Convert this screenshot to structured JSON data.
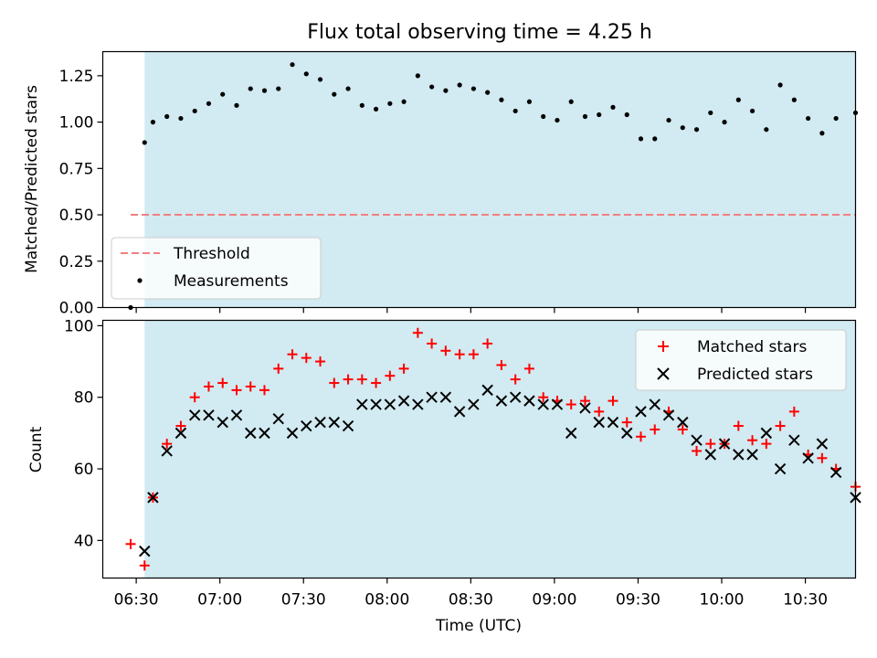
{
  "figure": {
    "title": "Flux total observing time = 4.25 h",
    "xlabel": "Time (UTC)"
  },
  "colors": {
    "shade": "#add8e6",
    "threshold": "#f08080",
    "measurements": "#000000",
    "matched": "#ff0000",
    "predicted": "#000000"
  },
  "chart_data": [
    {
      "type": "scatter",
      "ylabel": "Matched/Predicted stars",
      "ylim": [
        0,
        1.38
      ],
      "xlim": [
        "06:18",
        "10:48"
      ],
      "yticks": [
        0.0,
        0.25,
        0.5,
        0.75,
        1.0,
        1.25
      ],
      "ytick_labels": [
        "0.00",
        "0.25",
        "0.50",
        "0.75",
        "1.00",
        "1.25"
      ],
      "grid": false,
      "legend_position": "lower-left",
      "observing_window": [
        "06:33",
        "10:48"
      ],
      "threshold": {
        "name": "Threshold",
        "value": 0.5,
        "x": [
          "06:28",
          "10:48"
        ]
      },
      "series": [
        {
          "name": "Measurements",
          "x": [
            "06:28",
            "06:33",
            "06:36",
            "06:41",
            "06:46",
            "06:51",
            "06:56",
            "07:01",
            "07:06",
            "07:11",
            "07:16",
            "07:21",
            "07:26",
            "07:31",
            "07:36",
            "07:41",
            "07:46",
            "07:51",
            "07:56",
            "08:01",
            "08:06",
            "08:11",
            "08:16",
            "08:21",
            "08:26",
            "08:31",
            "08:36",
            "08:41",
            "08:46",
            "08:51",
            "08:56",
            "09:01",
            "09:06",
            "09:11",
            "09:16",
            "09:21",
            "09:26",
            "09:31",
            "09:36",
            "09:41",
            "09:46",
            "09:51",
            "09:56",
            "10:01",
            "10:06",
            "10:11",
            "10:16",
            "10:21",
            "10:26",
            "10:31",
            "10:36",
            "10:41",
            "10:48"
          ],
          "y": [
            0.0,
            0.89,
            1.0,
            1.03,
            1.02,
            1.06,
            1.1,
            1.15,
            1.09,
            1.18,
            1.17,
            1.18,
            1.31,
            1.26,
            1.23,
            1.15,
            1.18,
            1.09,
            1.07,
            1.1,
            1.11,
            1.25,
            1.19,
            1.17,
            1.2,
            1.18,
            1.16,
            1.12,
            1.06,
            1.11,
            1.03,
            1.01,
            1.11,
            1.03,
            1.04,
            1.08,
            1.04,
            0.91,
            0.91,
            1.01,
            0.97,
            0.96,
            1.05,
            1.0,
            1.12,
            1.06,
            0.96,
            1.2,
            1.12,
            1.02,
            0.94,
            1.02,
            1.05
          ]
        }
      ],
      "xticks": [
        "06:30",
        "07:00",
        "07:30",
        "08:00",
        "08:30",
        "09:00",
        "09:30",
        "10:00",
        "10:30"
      ]
    },
    {
      "type": "scatter",
      "ylabel": "Count",
      "ylim": [
        29.5,
        101.5
      ],
      "xlim": [
        "06:18",
        "10:48"
      ],
      "yticks": [
        40,
        60,
        80,
        100
      ],
      "ytick_labels": [
        "40",
        "60",
        "80",
        "100"
      ],
      "grid": false,
      "legend_position": "top-right",
      "observing_window": [
        "06:33",
        "10:48"
      ],
      "x": [
        "06:28",
        "06:33",
        "06:36",
        "06:41",
        "06:46",
        "06:51",
        "06:56",
        "07:01",
        "07:06",
        "07:11",
        "07:16",
        "07:21",
        "07:26",
        "07:31",
        "07:36",
        "07:41",
        "07:46",
        "07:51",
        "07:56",
        "08:01",
        "08:06",
        "08:11",
        "08:16",
        "08:21",
        "08:26",
        "08:31",
        "08:36",
        "08:41",
        "08:46",
        "08:51",
        "08:56",
        "09:01",
        "09:06",
        "09:11",
        "09:16",
        "09:21",
        "09:26",
        "09:31",
        "09:36",
        "09:41",
        "09:46",
        "09:51",
        "09:56",
        "10:01",
        "10:06",
        "10:11",
        "10:16",
        "10:21",
        "10:26",
        "10:31",
        "10:36",
        "10:41",
        "10:48"
      ],
      "series": [
        {
          "name": "Matched stars",
          "y": [
            39,
            33,
            52,
            67,
            72,
            80,
            83,
            84,
            82,
            83,
            82,
            88,
            92,
            91,
            90,
            84,
            85,
            85,
            84,
            86,
            88,
            98,
            95,
            93,
            92,
            92,
            95,
            89,
            85,
            88,
            80,
            79,
            78,
            79,
            76,
            79,
            73,
            69,
            71,
            76,
            71,
            65,
            67,
            67,
            72,
            68,
            67,
            72,
            76,
            64,
            63,
            60,
            55
          ]
        },
        {
          "name": "Predicted stars",
          "y": [
            null,
            37,
            52,
            65,
            70,
            75,
            75,
            73,
            75,
            70,
            70,
            74,
            70,
            72,
            73,
            73,
            72,
            78,
            78,
            78,
            79,
            78,
            80,
            80,
            76,
            78,
            82,
            79,
            80,
            79,
            78,
            78,
            70,
            77,
            73,
            73,
            70,
            76,
            78,
            75,
            73,
            68,
            64,
            67,
            64,
            64,
            70,
            60,
            68,
            63,
            67,
            59,
            52
          ]
        }
      ],
      "xticks": [
        "06:30",
        "07:00",
        "07:30",
        "08:00",
        "08:30",
        "09:00",
        "09:30",
        "10:00",
        "10:30"
      ]
    }
  ]
}
